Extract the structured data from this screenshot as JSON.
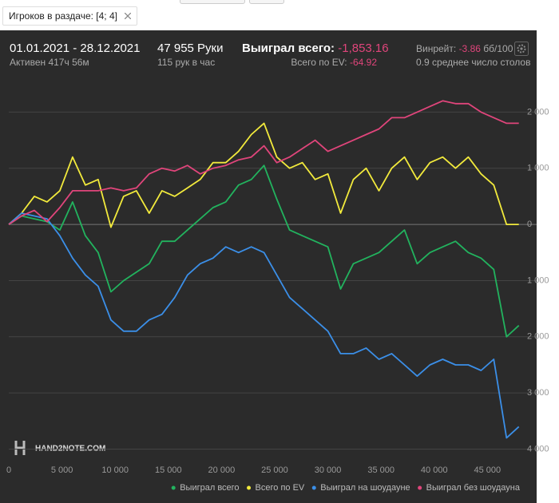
{
  "filter": {
    "label": "Игроков в раздаче: [4; 4]"
  },
  "header": {
    "dates": "01.01.2021 - 28.12.2021",
    "active": "Активен 417ч 56м",
    "hands": "47 955 Руки",
    "hands_per_hour": "115 рук в час",
    "won_label": "Выиграл всего:",
    "won_value": "-1,853.16",
    "ev_label": "Всего по EV:",
    "ev_value": "-64.92",
    "winrate_label": "Винрейт:",
    "winrate_value": "-3.86",
    "winrate_unit": "бб/100",
    "tables": "0.9 среднее число столов"
  },
  "watermark": "HAND2NOTE.COM",
  "chart_data": {
    "type": "line",
    "x": [
      0,
      1200,
      2400,
      3600,
      4800,
      6000,
      7200,
      8400,
      9600,
      10800,
      12000,
      13200,
      14400,
      15600,
      16800,
      18000,
      19200,
      20400,
      21600,
      22800,
      24000,
      25200,
      26400,
      27600,
      28800,
      30000,
      31200,
      32400,
      33600,
      34800,
      36000,
      37200,
      38400,
      39600,
      40800,
      42000,
      43200,
      44400,
      45600,
      46800,
      47955
    ],
    "series": [
      {
        "name": "Выиграл всего",
        "color": "#22b35e",
        "values": [
          0,
          150,
          100,
          50,
          -100,
          400,
          -200,
          -500,
          -1200,
          -1000,
          -850,
          -700,
          -300,
          -300,
          -100,
          100,
          300,
          400,
          700,
          800,
          1050,
          450,
          -100,
          -200,
          -300,
          -400,
          -1150,
          -700,
          -600,
          -500,
          -300,
          -100,
          -700,
          -500,
          -400,
          -300,
          -500,
          -600,
          -800,
          -2000,
          -1800
        ]
      },
      {
        "name": "Всего по EV",
        "color": "#f2ea3c",
        "values": [
          0,
          200,
          500,
          400,
          600,
          1200,
          700,
          800,
          -50,
          500,
          600,
          200,
          600,
          500,
          650,
          800,
          1100,
          1100,
          1300,
          1600,
          1800,
          1200,
          1000,
          1100,
          800,
          900,
          200,
          800,
          1000,
          600,
          1000,
          1200,
          800,
          1100,
          1200,
          1000,
          1200,
          900,
          700,
          0,
          0
        ]
      },
      {
        "name": "Выиграл на шоудауне",
        "color": "#3b8fe8",
        "values": [
          0,
          200,
          150,
          100,
          -200,
          -600,
          -900,
          -1100,
          -1700,
          -1900,
          -1900,
          -1700,
          -1600,
          -1300,
          -900,
          -700,
          -600,
          -400,
          -500,
          -400,
          -500,
          -900,
          -1300,
          -1500,
          -1700,
          -1900,
          -2300,
          -2300,
          -2200,
          -2400,
          -2300,
          -2500,
          -2700,
          -2500,
          -2400,
          -2500,
          -2500,
          -2600,
          -2400,
          -3800,
          -3600
        ]
      },
      {
        "name": "Выиграл без шоудауна",
        "color": "#e0457b",
        "values": [
          0,
          150,
          250,
          50,
          300,
          600,
          600,
          600,
          650,
          600,
          650,
          900,
          1000,
          950,
          1050,
          900,
          1000,
          1050,
          1150,
          1200,
          1400,
          1100,
          1200,
          1350,
          1500,
          1300,
          1400,
          1500,
          1600,
          1700,
          1900,
          1900,
          2000,
          2100,
          2200,
          2150,
          2150,
          2000,
          1900,
          1800,
          1800
        ]
      }
    ],
    "xlim": [
      0,
      48000
    ],
    "ylim": [
      -4200,
      2200
    ],
    "xticks": [
      0,
      {
        "value": 5000,
        "label": "5 000"
      },
      {
        "value": 10000,
        "label": "10 000"
      },
      {
        "value": 15000,
        "label": "15 000"
      },
      {
        "value": 20000,
        "label": "20 000"
      },
      {
        "value": 25000,
        "label": "25 000"
      },
      {
        "value": 30000,
        "label": "30 000"
      },
      {
        "value": 35000,
        "label": "35 000"
      },
      {
        "value": 40000,
        "label": "40 000"
      },
      {
        "value": 45000,
        "label": "45 000"
      }
    ],
    "yticks": [
      {
        "value": 2000,
        "label": "2 000"
      },
      {
        "value": 1000,
        "label": "1 000"
      },
      0,
      {
        "value": -1000,
        "label": "1 000"
      },
      {
        "value": -2000,
        "label": "2 000"
      },
      {
        "value": -3000,
        "label": "3 000"
      },
      {
        "value": -4000,
        "label": "4 000"
      }
    ],
    "grid": true
  }
}
